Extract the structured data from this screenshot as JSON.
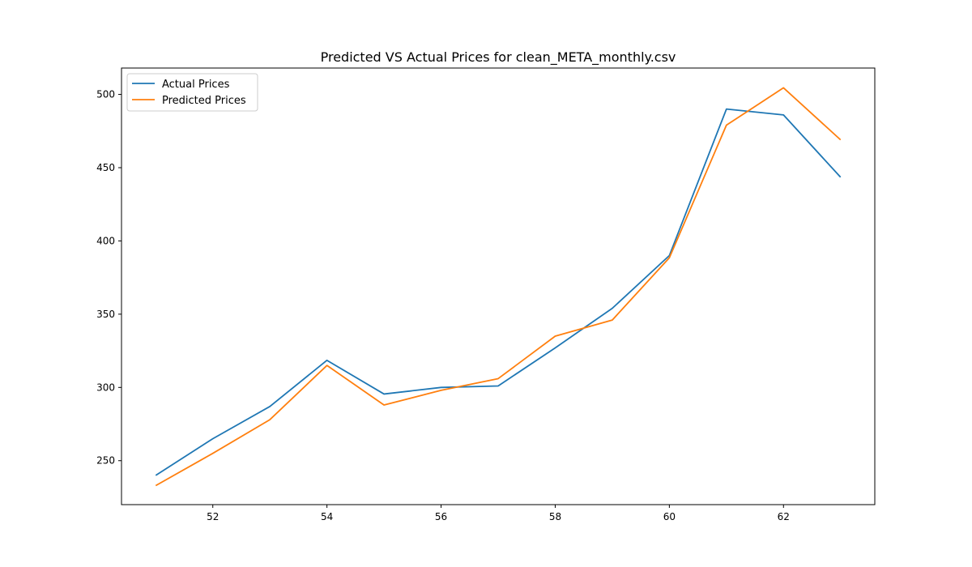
{
  "chart_data": {
    "type": "line",
    "title": "Predicted VS Actual Prices for clean_META_monthly.csv",
    "xlabel": "",
    "ylabel": "",
    "x": [
      51,
      52,
      53,
      54,
      55,
      56,
      57,
      58,
      59,
      60,
      61,
      62,
      63
    ],
    "xlim": [
      50.4,
      63.6
    ],
    "ylim": [
      220,
      518
    ],
    "x_ticks": [
      52,
      54,
      56,
      58,
      60,
      62
    ],
    "y_ticks": [
      250,
      300,
      350,
      400,
      450,
      500
    ],
    "grid": false,
    "legend_position": "upper left",
    "series": [
      {
        "name": "Actual Prices",
        "color": "#1f77b4",
        "values": [
          240,
          265,
          287,
          318.5,
          295.5,
          300,
          301,
          327,
          354,
          390,
          490,
          486,
          443.5
        ]
      },
      {
        "name": "Predicted Prices",
        "color": "#ff7f0e",
        "values": [
          233,
          255,
          278,
          315,
          288,
          298,
          306,
          335,
          346,
          388.5,
          479,
          504.5,
          469
        ]
      }
    ]
  }
}
